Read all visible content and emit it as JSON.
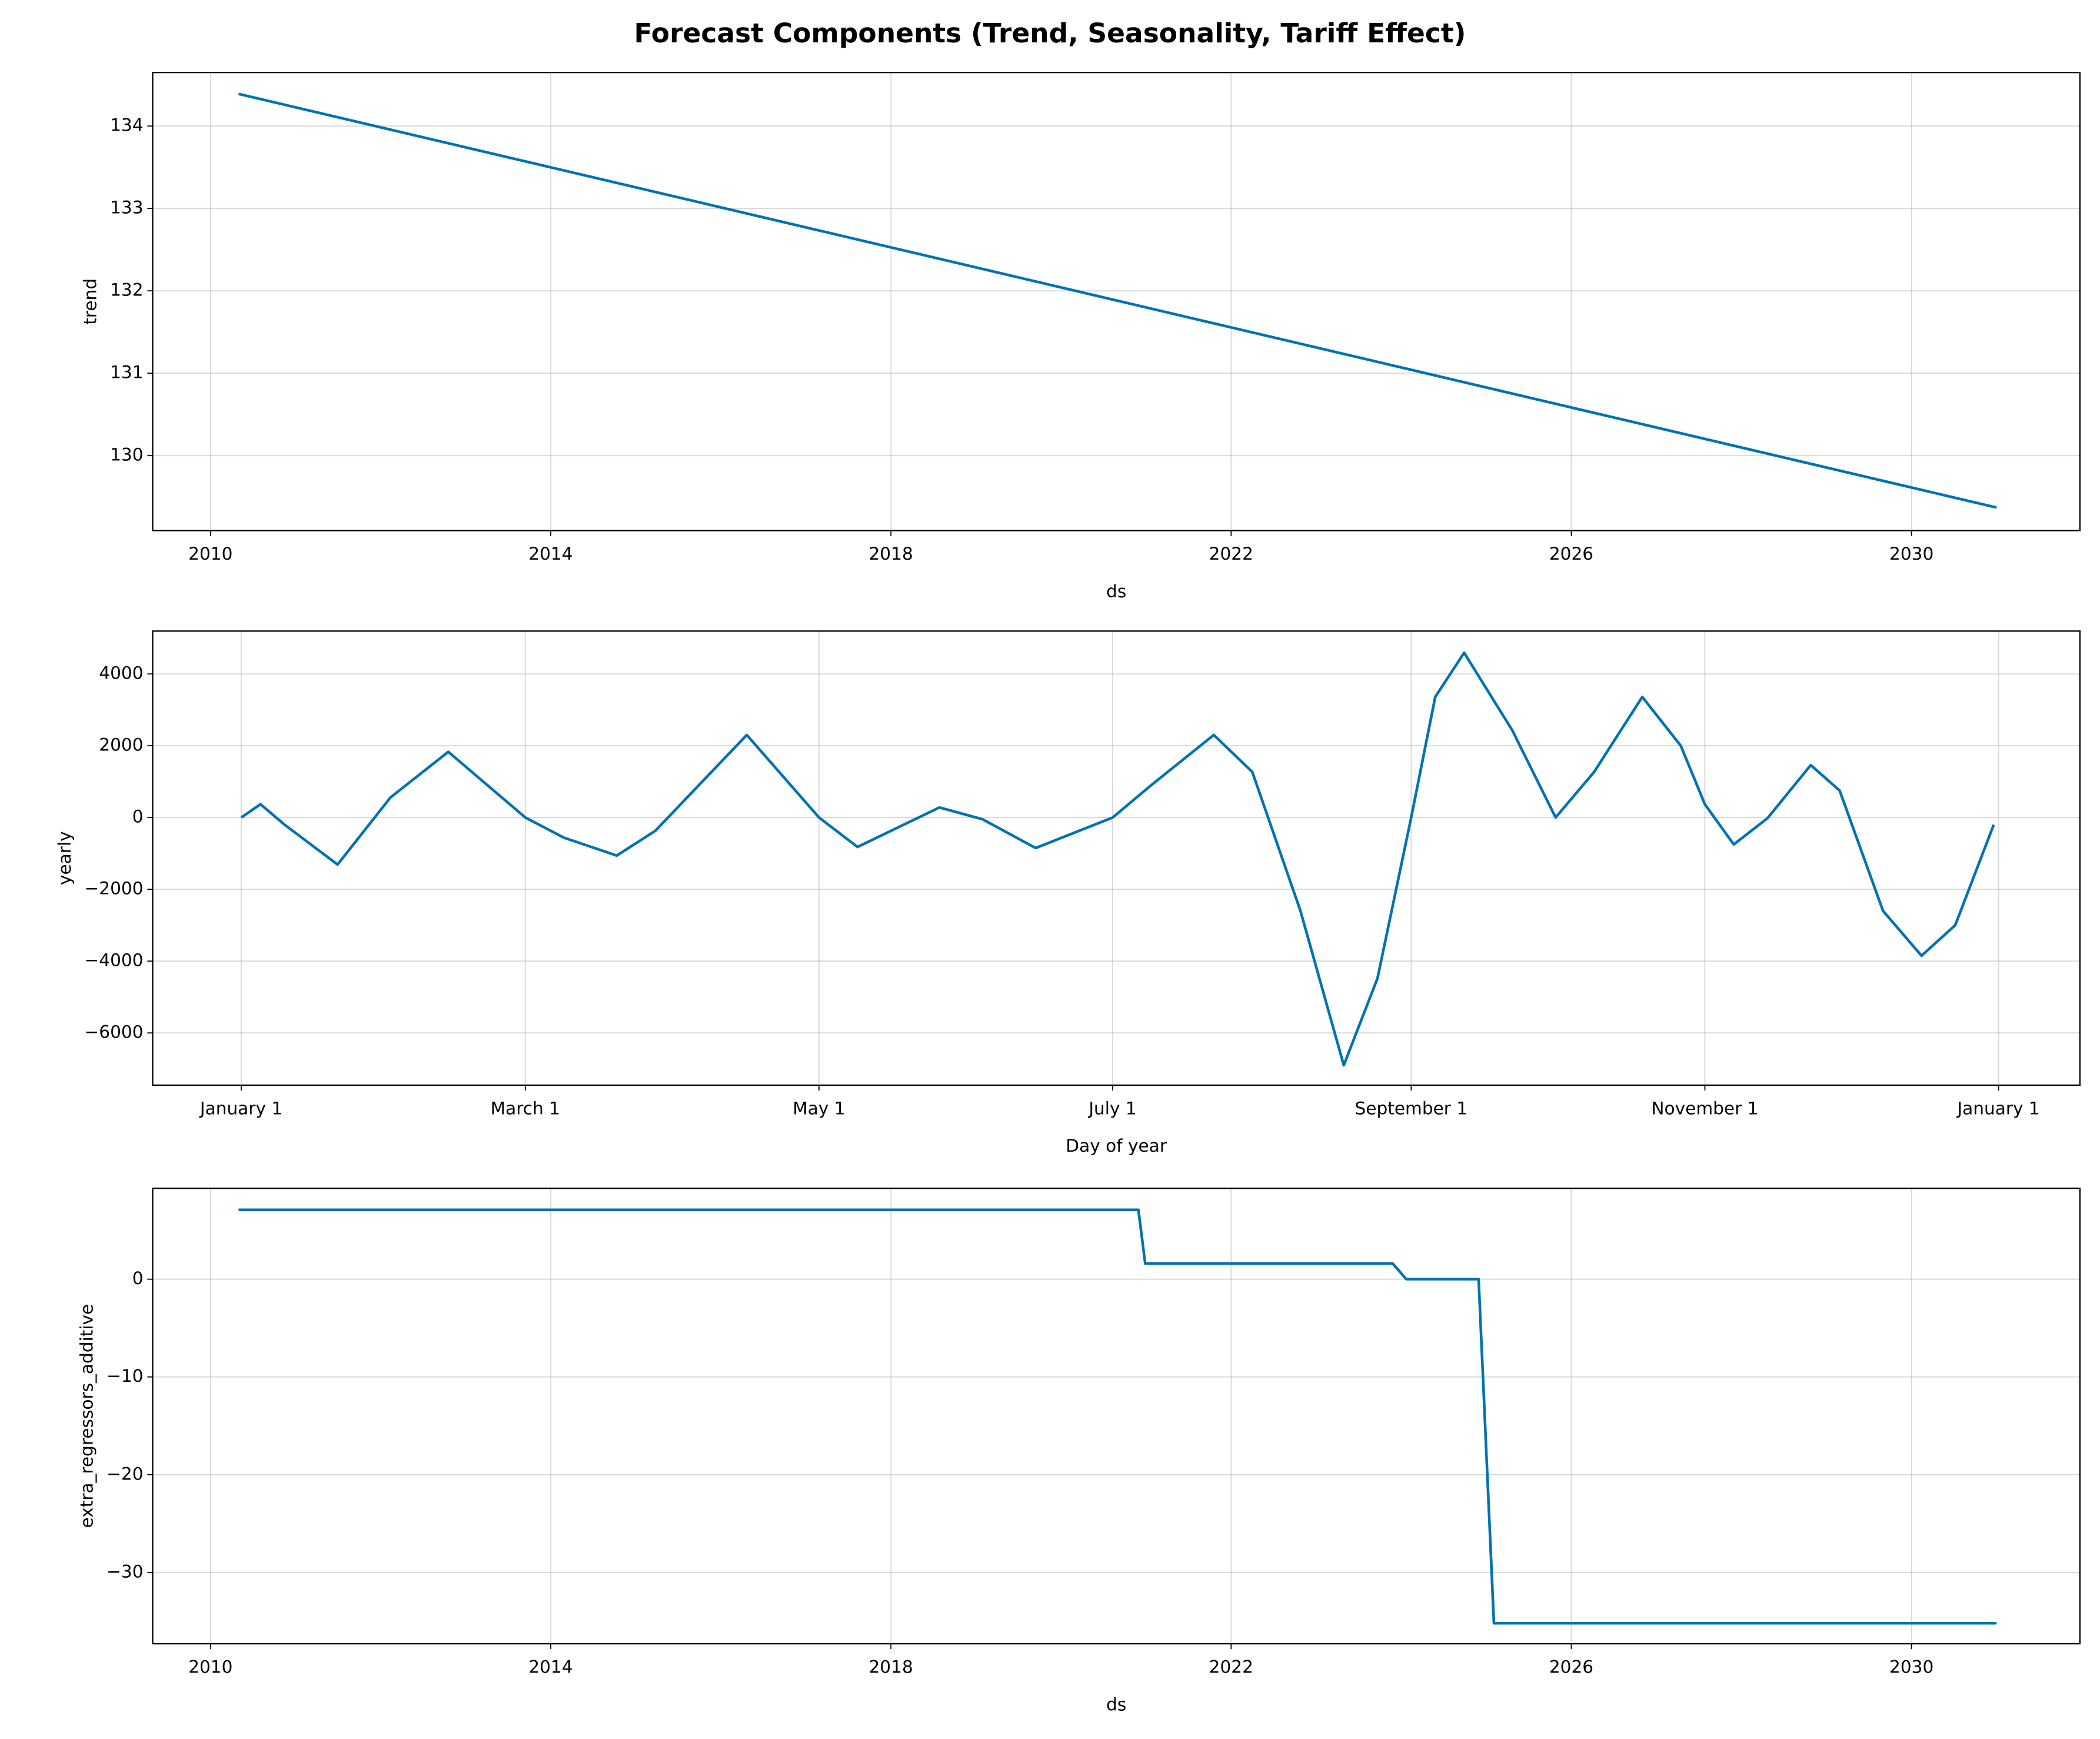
{
  "title": "Forecast Components (Trend, Seasonality, Tariff Effect)",
  "chart_data": [
    {
      "type": "line",
      "xlabel": "ds",
      "ylabel": "trend",
      "color": "#0072B2",
      "grid": true,
      "x": [
        2010.33,
        2031.0
      ],
      "values": [
        134.39,
        129.37
      ],
      "xlim": [
        2009.32,
        2031.98
      ],
      "xticks": [
        2010,
        2014,
        2018,
        2022,
        2026,
        2030
      ],
      "ylim": [
        129.09,
        134.65
      ],
      "yticks": [
        130,
        131,
        132,
        133,
        134
      ]
    },
    {
      "type": "line",
      "xlabel": "Day of year",
      "ylabel": "yearly",
      "color": "#0072B2",
      "grid": true,
      "x": [
        0,
        4,
        9,
        20,
        31,
        43,
        59,
        67,
        78,
        86,
        105,
        120,
        128,
        145,
        154,
        165,
        181,
        189,
        202,
        210,
        220,
        229,
        236,
        243,
        248,
        254,
        264,
        273,
        281,
        291,
        299,
        304,
        310,
        317,
        326,
        332,
        341,
        349,
        356,
        364
      ],
      "values": [
        0,
        370,
        -200,
        -1310,
        560,
        1830,
        0,
        -560,
        -1060,
        -370,
        2300,
        0,
        -820,
        280,
        -50,
        -850,
        0,
        900,
        2300,
        1270,
        -2600,
        -6900,
        -4480,
        0,
        3360,
        4590,
        2430,
        0,
        1270,
        3360,
        2000,
        370,
        -750,
        -20,
        1460,
        750,
        -2600,
        -3850,
        -3000,
        -200
      ],
      "xlim": [
        -18.4,
        381.9
      ],
      "xticks": [
        {
          "value": 0,
          "label": "January 1"
        },
        {
          "value": 59,
          "label": "March 1"
        },
        {
          "value": 120,
          "label": "May 1"
        },
        {
          "value": 181,
          "label": "July 1"
        },
        {
          "value": 243,
          "label": "September 1"
        },
        {
          "value": 304,
          "label": "November 1"
        },
        {
          "value": 365,
          "label": "January 1"
        }
      ],
      "ylim": [
        -7455,
        5194
      ],
      "yticks": [
        {
          "value": -6000,
          "label": "−6000"
        },
        {
          "value": -4000,
          "label": "−4000"
        },
        {
          "value": -2000,
          "label": "−2000"
        },
        0,
        2000,
        4000
      ]
    },
    {
      "type": "line",
      "xlabel": "ds",
      "ylabel": "extra_regressors_additive",
      "color": "#0072B2",
      "grid": true,
      "x": [
        2010.33,
        2020.91,
        2020.99,
        2023.9,
        2024.06,
        2024.91,
        2025.09,
        2031.0
      ],
      "values": [
        7.1,
        7.1,
        1.6,
        1.6,
        0,
        0,
        -35.2,
        -35.2
      ],
      "xlim": [
        2009.32,
        2031.98
      ],
      "xticks": [
        2010,
        2014,
        2018,
        2022,
        2026,
        2030
      ],
      "ylim": [
        -37.3,
        9.3
      ],
      "yticks": [
        {
          "value": -30,
          "label": "−30"
        },
        {
          "value": -20,
          "label": "−20"
        },
        {
          "value": -10,
          "label": "−10"
        },
        0
      ]
    }
  ]
}
